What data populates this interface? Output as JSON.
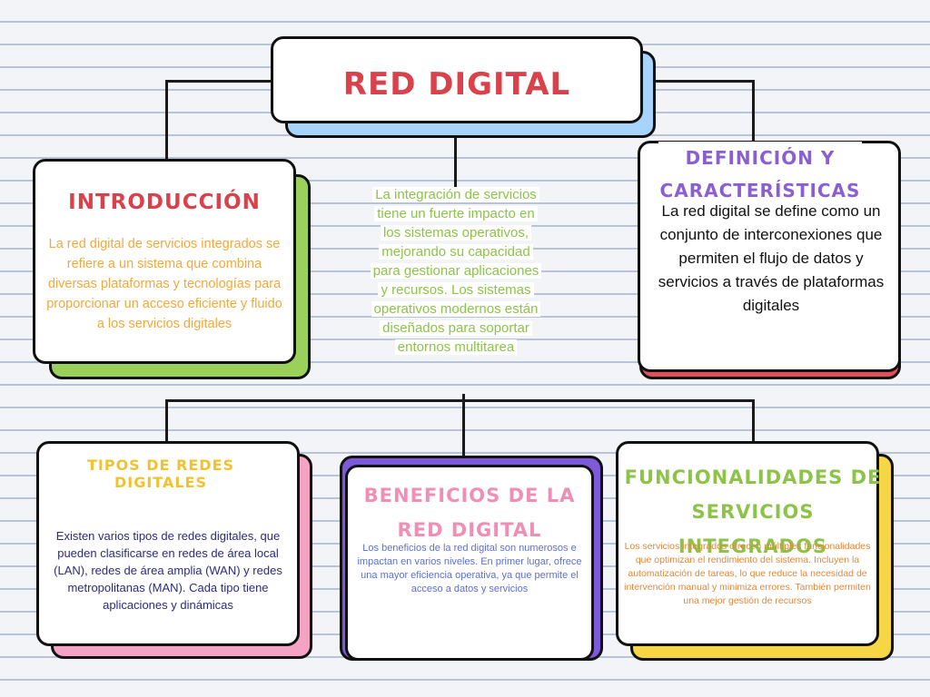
{
  "title": "RED DIGITAL",
  "center_note": "La integración de servicios tiene un fuerte impacto en los sistemas operativos, mejorando su capacidad para gestionar aplicaciones y recursos. Los sistemas operativos modernos están diseñados para soportar entornos multitarea",
  "boxes": {
    "introduccion": {
      "heading": "INTRODUCCIÓN",
      "text": "La red digital de servicios integrados se refiere a un sistema que combina diversas plataformas y tecnologías para proporcionar un acceso eficiente y fluido a los servicios digitales"
    },
    "definicion": {
      "heading": "DEFINICIÓN Y CARACTERÍSTICAS",
      "text": "La red digital se define como un conjunto de interconexiones que permiten el flujo de datos y servicios a través de plataformas digitales"
    },
    "tipos": {
      "heading": "TIPOS DE REDES DIGITALES",
      "text": "Existen varios tipos de redes digitales, que pueden clasificarse en redes de área local (LAN), redes de área amplia (WAN) y redes metropolitanas (MAN). Cada tipo tiene aplicaciones y dinámicas"
    },
    "beneficios": {
      "heading": "BENEFICIOS DE LA RED DIGITAL",
      "text": "Los beneficios de la red digital son numerosos e impactan en varios niveles. En primer lugar, ofrece una mayor eficiencia operativa, ya que permite el acceso a datos y servicios"
    },
    "funcionalidades": {
      "heading": "FUNCIONALIDADES DE SERVICIOS INTEGRADOS",
      "text": "Los servicios integrados ofrecen múltiples funcionalidades que optimizan el rendimiento del sistema. Incluyen la automatización de tareas, lo que reduce la necesidad de intervención manual y minimiza errores. También permiten una mejor gestión de recursos"
    }
  },
  "colors": {
    "title": "#d9414b",
    "intro_heading": "#d9414b",
    "intro_text": "#f2a93b",
    "intro_shadow": "#9bd05a",
    "def_heading": "#8a5fd1",
    "def_text": "#111111",
    "def_shadow": "#e0505a",
    "tipos_heading": "#f2c12e",
    "tipos_text": "#2b2b7a",
    "tipos_shadow": "#f4a3c4",
    "ben_heading": "#f08fb5",
    "ben_text": "#5f6fcf",
    "ben_shadow": "#7c5ad9",
    "func_heading": "#8ec34a",
    "func_text": "#e0883a",
    "func_shadow": "#f6d645",
    "title_shadow": "#a8d4fb",
    "center_note": "#8ec34a"
  }
}
